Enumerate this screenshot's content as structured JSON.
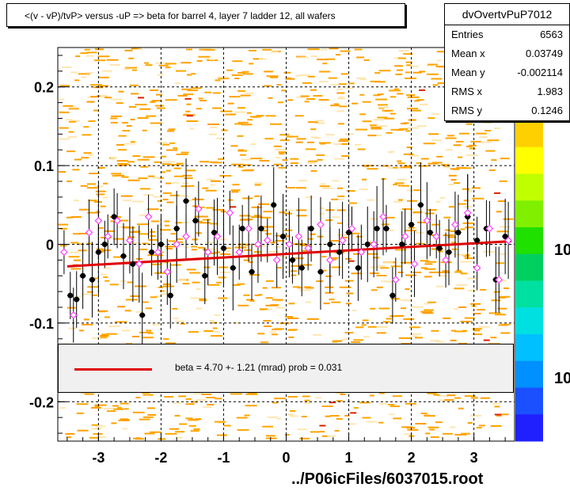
{
  "title": "<(v - vP)/tvP> versus  -uP => beta for barrel 4, layer 7 ladder 12, all wafers",
  "stats": {
    "name": "dvOvertvPuP7012",
    "rows": [
      {
        "label": "Entries",
        "value": "6563"
      },
      {
        "label": "Mean x",
        "value": "0.03749"
      },
      {
        "label": "Mean y",
        "value": "-0.002114"
      },
      {
        "label": "RMS x",
        "value": "1.983"
      },
      {
        "label": "RMS y",
        "value": "0.1246"
      }
    ]
  },
  "legend": {
    "text": "beta =    4.70 +-  1.21 (mrad) prob = 0.031"
  },
  "footer": "../P06icFiles/6037015.root",
  "colors": {
    "fit_line": "#e00000",
    "bin": "#ffa500",
    "bin_light": "#ffe6b0",
    "black_points": "#000000",
    "pink_points": "#ff40ff"
  },
  "chart_data": {
    "type": "scatter",
    "xlim": [
      -3.65,
      3.65
    ],
    "ylim": [
      -0.25,
      0.25
    ],
    "x_ticks": [
      -3,
      -2,
      -1,
      0,
      1,
      2,
      3
    ],
    "y_ticks": [
      -0.2,
      -0.1,
      0,
      0.1,
      0.2
    ],
    "y_tick_labels": [
      "-0.2",
      "-0.1",
      "0",
      "0.1",
      "0.2"
    ],
    "palette_labels": [
      "10",
      "10"
    ],
    "fit": {
      "x": [
        -3.5,
        3.6
      ],
      "y": [
        -0.028,
        0.004
      ]
    },
    "black_series": [
      {
        "x": -3.45,
        "y": -0.065
      },
      {
        "x": -3.35,
        "y": -0.07
      },
      {
        "x": -3.25,
        "y": -0.04
      },
      {
        "x": -3.1,
        "y": -0.045
      },
      {
        "x": -3.0,
        "y": -0.01
      },
      {
        "x": -2.9,
        "y": 0.0
      },
      {
        "x": -2.75,
        "y": 0.035
      },
      {
        "x": -2.6,
        "y": -0.015
      },
      {
        "x": -2.45,
        "y": -0.025
      },
      {
        "x": -2.3,
        "y": -0.09
      },
      {
        "x": -2.15,
        "y": -0.01
      },
      {
        "x": -2.0,
        "y": 0.0
      },
      {
        "x": -1.85,
        "y": -0.065
      },
      {
        "x": -1.75,
        "y": 0.02
      },
      {
        "x": -1.6,
        "y": 0.055
      },
      {
        "x": -1.45,
        "y": 0.03
      },
      {
        "x": -1.3,
        "y": -0.04
      },
      {
        "x": -1.15,
        "y": 0.015
      },
      {
        "x": -1.0,
        "y": -0.005
      },
      {
        "x": -0.85,
        "y": -0.03
      },
      {
        "x": -0.7,
        "y": 0.02
      },
      {
        "x": -0.55,
        "y": -0.035
      },
      {
        "x": -0.4,
        "y": 0.02
      },
      {
        "x": -0.2,
        "y": 0.05
      },
      {
        "x": -0.05,
        "y": 0.01
      },
      {
        "x": 0.1,
        "y": -0.02
      },
      {
        "x": 0.25,
        "y": -0.03
      },
      {
        "x": 0.4,
        "y": 0.02
      },
      {
        "x": 0.55,
        "y": -0.035
      },
      {
        "x": 0.7,
        "y": 0.0
      },
      {
        "x": 0.85,
        "y": -0.01
      },
      {
        "x": 1.0,
        "y": 0.015
      },
      {
        "x": 1.15,
        "y": -0.03
      },
      {
        "x": 1.3,
        "y": 0.0
      },
      {
        "x": 1.45,
        "y": 0.02
      },
      {
        "x": 1.6,
        "y": 0.02
      },
      {
        "x": 1.7,
        "y": -0.065
      },
      {
        "x": 1.85,
        "y": 0.0
      },
      {
        "x": 2.0,
        "y": 0.025
      },
      {
        "x": 2.15,
        "y": 0.05
      },
      {
        "x": 2.3,
        "y": 0.015
      },
      {
        "x": 2.45,
        "y": -0.005
      },
      {
        "x": 2.6,
        "y": -0.01
      },
      {
        "x": 2.75,
        "y": 0.015
      },
      {
        "x": 2.9,
        "y": 0.035
      },
      {
        "x": 3.05,
        "y": 0.005
      },
      {
        "x": 3.2,
        "y": 0.02
      },
      {
        "x": 3.35,
        "y": -0.045
      },
      {
        "x": 3.5,
        "y": 0.01
      }
    ],
    "pink_series": [
      {
        "x": -3.55,
        "y": -0.01
      },
      {
        "x": -3.4,
        "y": -0.09
      },
      {
        "x": -3.15,
        "y": 0.015
      },
      {
        "x": -3.0,
        "y": 0.03
      },
      {
        "x": -2.85,
        "y": 0.01
      },
      {
        "x": -2.7,
        "y": 0.03
      },
      {
        "x": -2.5,
        "y": 0.005
      },
      {
        "x": -2.35,
        "y": -0.025
      },
      {
        "x": -2.2,
        "y": 0.035
      },
      {
        "x": -2.05,
        "y": -0.01
      },
      {
        "x": -1.9,
        "y": -0.035
      },
      {
        "x": -1.75,
        "y": 0.0
      },
      {
        "x": -1.6,
        "y": 0.01
      },
      {
        "x": -1.4,
        "y": 0.045
      },
      {
        "x": -1.25,
        "y": -0.01
      },
      {
        "x": -1.1,
        "y": 0.01
      },
      {
        "x": -0.9,
        "y": 0.04
      },
      {
        "x": -0.75,
        "y": -0.01
      },
      {
        "x": -0.6,
        "y": 0.02
      },
      {
        "x": -0.45,
        "y": 0.0
      },
      {
        "x": -0.3,
        "y": 0.005
      },
      {
        "x": -0.15,
        "y": -0.02
      },
      {
        "x": 0.05,
        "y": 0.0
      },
      {
        "x": 0.2,
        "y": 0.01
      },
      {
        "x": 0.35,
        "y": -0.005
      },
      {
        "x": 0.55,
        "y": 0.025
      },
      {
        "x": 0.7,
        "y": -0.02
      },
      {
        "x": 0.9,
        "y": 0.005
      },
      {
        "x": 1.05,
        "y": 0.02
      },
      {
        "x": 1.2,
        "y": -0.01
      },
      {
        "x": 1.4,
        "y": 0.0
      },
      {
        "x": 1.55,
        "y": 0.035
      },
      {
        "x": 1.75,
        "y": -0.045
      },
      {
        "x": 1.9,
        "y": 0.01
      },
      {
        "x": 2.05,
        "y": -0.025
      },
      {
        "x": 2.25,
        "y": 0.03
      },
      {
        "x": 2.4,
        "y": 0.01
      },
      {
        "x": 2.55,
        "y": -0.02
      },
      {
        "x": 2.7,
        "y": 0.025
      },
      {
        "x": 2.9,
        "y": 0.04
      },
      {
        "x": 3.05,
        "y": -0.03
      },
      {
        "x": 3.25,
        "y": 0.02
      },
      {
        "x": 3.4,
        "y": -0.045
      },
      {
        "x": 3.55,
        "y": 0.005
      }
    ]
  }
}
